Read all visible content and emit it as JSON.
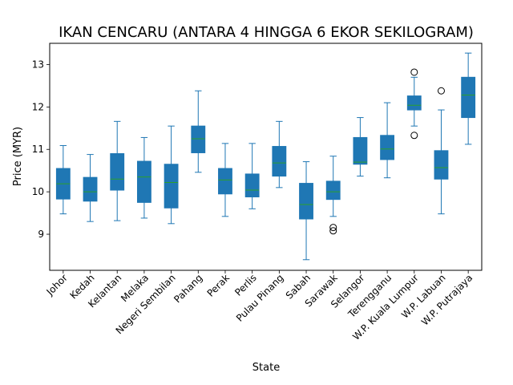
{
  "chart_data": {
    "type": "box",
    "title": "IKAN CENCARU (ANTARA 4 HINGGA 6 EKOR SEKILOGRAM)",
    "xlabel": "State",
    "ylabel": "Price (MYR)",
    "ylim": [
      8.15,
      13.5
    ],
    "yticks": [
      9,
      10,
      11,
      12,
      13
    ],
    "grid": false,
    "colors": {
      "box_fill": "#1f77b4",
      "median": "#2ca02c",
      "whisker": "#1f77b4",
      "flier": "#000000"
    },
    "categories": [
      "Johor",
      "Kedah",
      "Kelantan",
      "Melaka",
      "Negeri Sembilan",
      "Pahang",
      "Perak",
      "Perlis",
      "Pulau Pinang",
      "Sabah",
      "Sarawak",
      "Selangor",
      "Terengganu",
      "W.P. Kuala Lumpur",
      "W.P. Labuan",
      "W.P. Putrajaya"
    ],
    "boxes": [
      {
        "whislo": 9.48,
        "q1": 9.83,
        "med": 10.19,
        "q3": 10.55,
        "whishi": 11.09,
        "fliers": []
      },
      {
        "whislo": 9.3,
        "q1": 9.78,
        "med": 10.0,
        "q3": 10.34,
        "whishi": 10.88,
        "fliers": []
      },
      {
        "whislo": 9.32,
        "q1": 10.04,
        "med": 10.3,
        "q3": 10.9,
        "whishi": 11.66,
        "fliers": []
      },
      {
        "whislo": 9.38,
        "q1": 9.75,
        "med": 10.35,
        "q3": 10.72,
        "whishi": 11.28,
        "fliers": []
      },
      {
        "whislo": 9.25,
        "q1": 9.62,
        "med": 10.22,
        "q3": 10.65,
        "whishi": 11.55,
        "fliers": []
      },
      {
        "whislo": 10.46,
        "q1": 10.92,
        "med": 11.25,
        "q3": 11.55,
        "whishi": 12.38,
        "fliers": []
      },
      {
        "whislo": 9.42,
        "q1": 9.95,
        "med": 10.28,
        "q3": 10.55,
        "whishi": 11.14,
        "fliers": []
      },
      {
        "whislo": 9.6,
        "q1": 9.88,
        "med": 10.04,
        "q3": 10.42,
        "whishi": 11.14,
        "fliers": []
      },
      {
        "whislo": 10.1,
        "q1": 10.37,
        "med": 10.68,
        "q3": 11.07,
        "whishi": 11.66,
        "fliers": []
      },
      {
        "whislo": 8.4,
        "q1": 9.36,
        "med": 9.7,
        "q3": 10.2,
        "whishi": 10.71,
        "fliers": []
      },
      {
        "whislo": 9.42,
        "q1": 9.82,
        "med": 10.0,
        "q3": 10.25,
        "whishi": 10.84,
        "fliers": [
          9.08,
          9.16
        ]
      },
      {
        "whislo": 10.37,
        "q1": 10.65,
        "med": 10.7,
        "q3": 11.28,
        "whishi": 11.75,
        "fliers": []
      },
      {
        "whislo": 10.33,
        "q1": 10.76,
        "med": 11.01,
        "q3": 11.33,
        "whishi": 12.1,
        "fliers": []
      },
      {
        "whislo": 11.55,
        "q1": 11.93,
        "med": 12.04,
        "q3": 12.26,
        "whishi": 12.7,
        "fliers": [
          11.33,
          12.82
        ]
      },
      {
        "whislo": 9.48,
        "q1": 10.3,
        "med": 10.57,
        "q3": 10.97,
        "whishi": 11.93,
        "fliers": [
          12.38
        ]
      },
      {
        "whislo": 11.12,
        "q1": 11.75,
        "med": 12.28,
        "q3": 12.7,
        "whishi": 13.27,
        "fliers": []
      }
    ]
  }
}
